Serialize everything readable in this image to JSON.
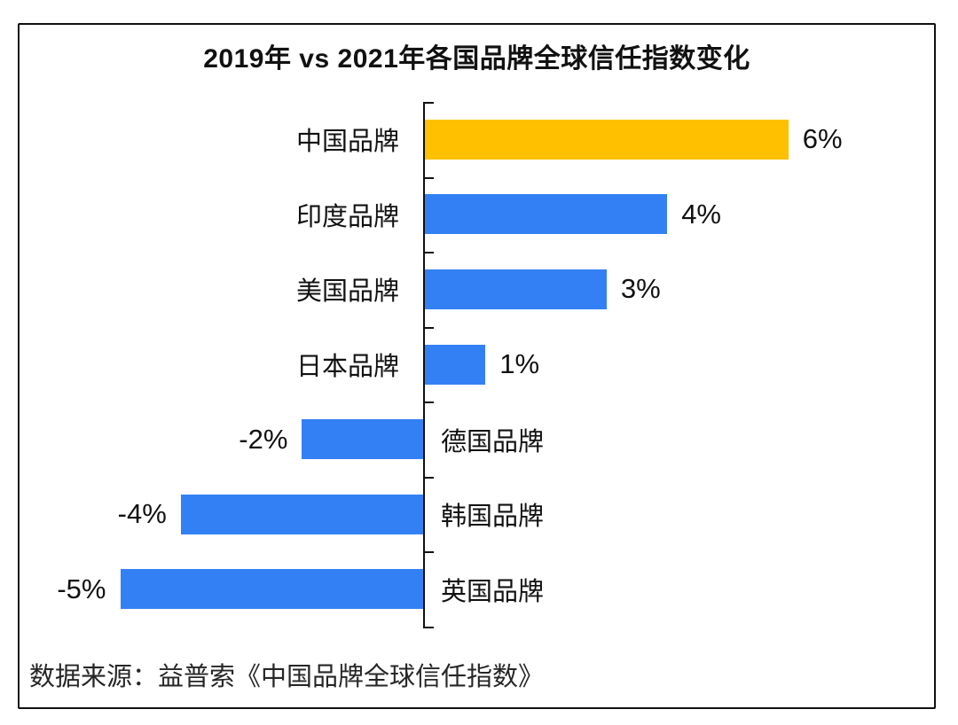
{
  "title": "2019年 vs 2021年各国品牌全球信任指数变化",
  "source": "数据来源：益普索《中国品牌全球信任指数》",
  "colors": {
    "highlight_bar": "#FFC000",
    "default_bar": "#3380F4",
    "axis": "#111111",
    "border": "#111111",
    "text": "#111111"
  },
  "chart_data": {
    "type": "bar",
    "orientation": "horizontal",
    "title": "2019年 vs 2021年各国品牌全球信任指数变化",
    "xlabel": "",
    "ylabel": "",
    "categories": [
      "中国品牌",
      "印度品牌",
      "美国品牌",
      "日本品牌",
      "德国品牌",
      "韩国品牌",
      "英国品牌"
    ],
    "values": [
      6,
      4,
      3,
      1,
      -2,
      -4,
      -5
    ],
    "value_labels": [
      "6%",
      "4%",
      "3%",
      "1%",
      "-2%",
      "-4%",
      "-5%"
    ],
    "bar_colors": [
      "#FFC000",
      "#3380F4",
      "#3380F4",
      "#3380F4",
      "#3380F4",
      "#3380F4",
      "#3380F4"
    ],
    "unit": "%",
    "xlim": [
      -6.5,
      7.5
    ],
    "grid": false,
    "legend": false,
    "baseline_axis": "vertical-zero-line",
    "annotation_source": "数据来源：益普索《中国品牌全球信任指数》"
  }
}
